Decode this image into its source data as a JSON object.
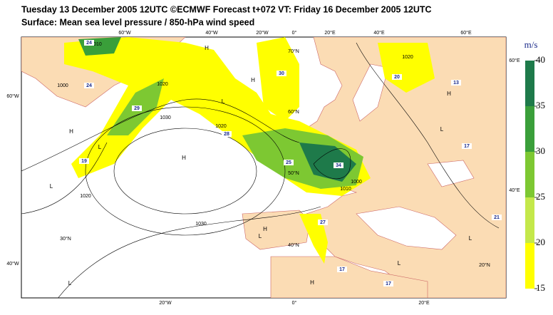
{
  "header": {
    "line1": "Tuesday 13 December 2005 12UTC ©ECMWF Forecast t+072 VT: Friday 16 December 2005 12UTC",
    "line2": "Surface: Mean sea level pressure / 850-hPa wind speed"
  },
  "colorbar": {
    "unit": "m/s",
    "ticks": [
      15,
      20,
      25,
      30,
      35,
      40
    ],
    "colors": [
      "#ffff00",
      "#c4e84a",
      "#7dc832",
      "#3a9f3a",
      "#1e7a4a"
    ]
  },
  "map": {
    "grid_labels": [
      "60°W",
      "40°W",
      "20°W",
      "0°",
      "20°E",
      "40°E",
      "60°E",
      "20°W",
      "0°",
      "20°E",
      "60°W",
      "40°W",
      "60°E",
      "40°E",
      "70°N",
      "60°N",
      "50°N",
      "40°N",
      "30°N",
      "20°N"
    ],
    "pressure_centres": [
      "H",
      "H",
      "L",
      "L",
      "H",
      "H",
      "L",
      "L",
      "L",
      "H",
      "H",
      "L",
      "L",
      "H",
      "L"
    ],
    "isobar_labels": [
      "1030",
      "1020",
      "1020",
      "1010",
      "1000",
      "1030",
      "1010",
      "1000",
      "1020",
      "1020"
    ],
    "wind_labels": [
      "24",
      "24",
      "29",
      "28",
      "25",
      "34",
      "30",
      "20",
      "17",
      "21",
      "17",
      "17",
      "13",
      "19",
      "27"
    ]
  }
}
